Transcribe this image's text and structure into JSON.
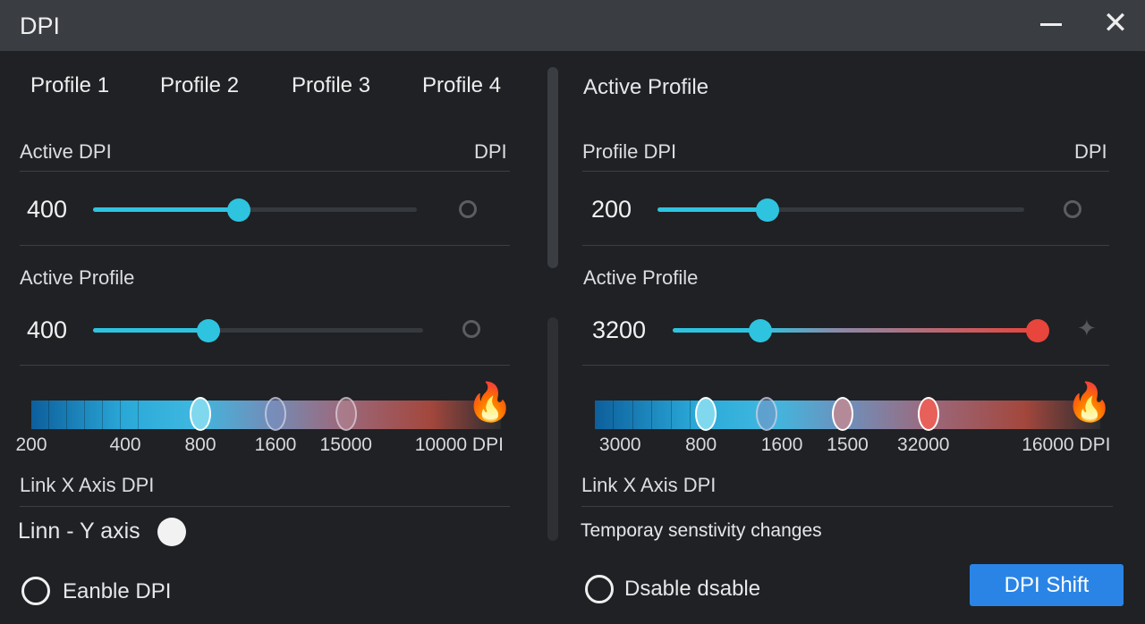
{
  "window": {
    "title": "DPI"
  },
  "tabs": [
    "Profile 1",
    "Profile 2",
    "Profile 3",
    "Profile 4"
  ],
  "left": {
    "active_dpi_label": "Active DPI",
    "dpi_unit": "DPI",
    "slider1": {
      "value": "400",
      "fraction": 0.45
    },
    "active_profile_label": "Active Profile",
    "slider2": {
      "value": "400",
      "fraction": 0.35
    },
    "scale": {
      "ticks": [
        "200",
        "400",
        "800",
        "1600",
        "15000",
        "10000 DPI"
      ],
      "markers": [
        0.36,
        0.52,
        0.67
      ]
    },
    "link_x_label": "Link X Axis DPI",
    "link_y_label": "Linn - Y axis",
    "enable_label": "Eanble DPI"
  },
  "right": {
    "heading": "Active Profile",
    "profile_dpi_label": "Profile DPI",
    "dpi_unit": "DPI",
    "slider1": {
      "value": "200",
      "fraction": 0.3
    },
    "active_profile_label": "Active Profile",
    "slider2": {
      "value": "3200",
      "fraction": 0.24,
      "max_fraction": 1.0
    },
    "scale": {
      "ticks": [
        "3000",
        "800",
        "1600",
        "1500",
        "32000",
        "16000 DPI"
      ],
      "markers": [
        0.22,
        0.34,
        0.49,
        0.66
      ]
    },
    "link_x_label": "Link X  Axis DPI",
    "temp_label": "Temporay senstivity changes",
    "disable_label": "Dsable dsable",
    "shift_button": "DPI Shift"
  },
  "colors": {
    "accent": "#2ec4e0",
    "button": "#2a84e6",
    "red": "#e8453c"
  }
}
